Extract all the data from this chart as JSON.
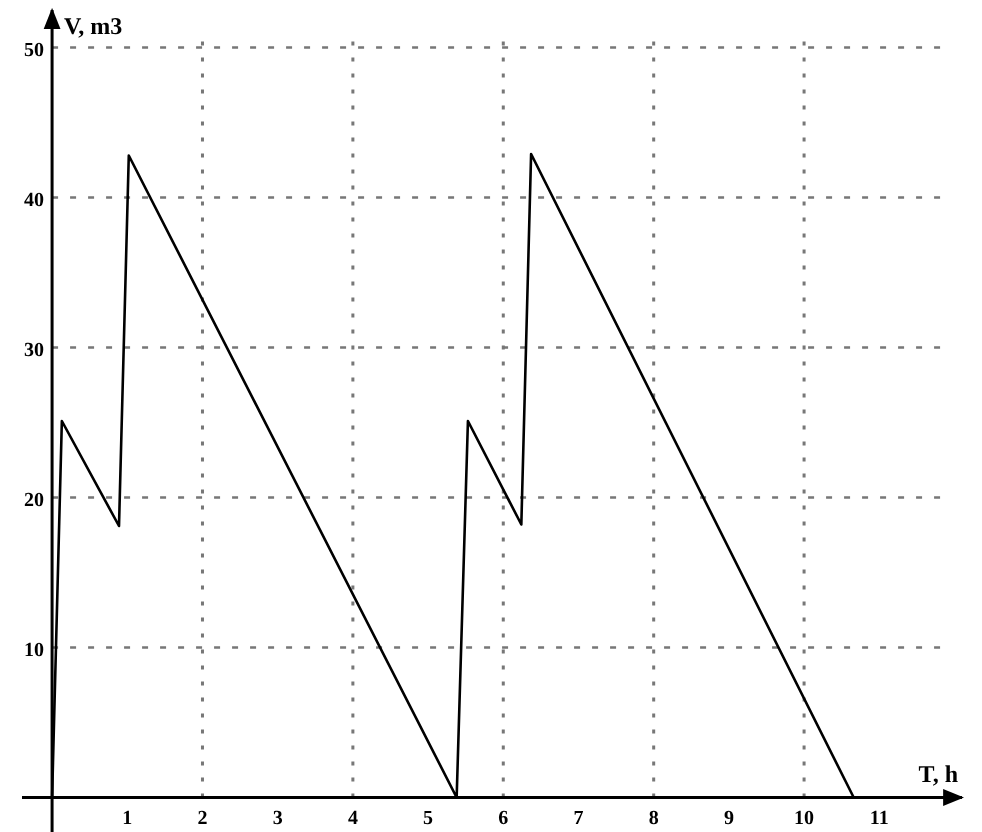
{
  "chart_data": {
    "type": "line",
    "xlabel": "T, h",
    "ylabel": "V, m3",
    "x": [
      0,
      0.13,
      0.89,
      1.02,
      5.38,
      5.53,
      6.24,
      6.37,
      10.66
    ],
    "series": [
      {
        "color": "#000000",
        "values": [
          0,
          25.1,
          18.1,
          42.8,
          0,
          25.1,
          18.2,
          42.9,
          0
        ]
      }
    ],
    "xlim": [
      -0.4,
      12.1
    ],
    "ylim": [
      -2.3,
      52.5
    ],
    "xticks": [
      1,
      2,
      3,
      4,
      5,
      6,
      7,
      8,
      9,
      10,
      11
    ],
    "yticks": [
      10,
      20,
      30,
      40,
      50
    ],
    "grid": "y",
    "marker": "none",
    "line_style": "solid",
    "ref_lines": [
      {
        "axis": "x",
        "value": 2,
        "line_style": "dotted",
        "color": "#777777"
      },
      {
        "axis": "x",
        "value": 4,
        "line_style": "dotted",
        "color": "#777777"
      },
      {
        "axis": "x",
        "value": 6,
        "line_style": "dotted",
        "color": "#777777"
      },
      {
        "axis": "x",
        "value": 8,
        "line_style": "dotted",
        "color": "#777777"
      },
      {
        "axis": "x",
        "value": 10,
        "line_style": "dotted",
        "color": "#777777"
      }
    ]
  }
}
